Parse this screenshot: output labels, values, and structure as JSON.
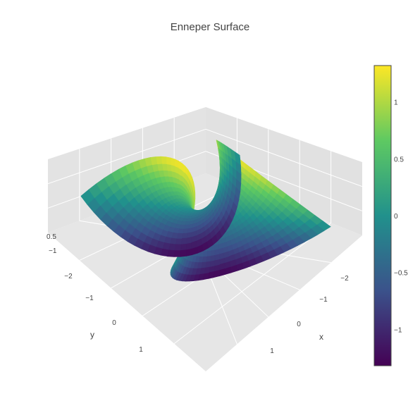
{
  "chart_data": {
    "type": "surface",
    "title": "Enneper Surface",
    "colorscale": "Viridis",
    "colorscale_colors": [
      "#440154",
      "#3b528b",
      "#21918c",
      "#5ec962",
      "#fde725"
    ],
    "colorbar": {
      "range": [
        -1.32,
        1.32
      ],
      "ticks": [
        {
          "value": 1,
          "label": "1"
        },
        {
          "value": 0.5,
          "label": "0.5"
        },
        {
          "value": 0,
          "label": "0"
        },
        {
          "value": -0.5,
          "label": "−0.5"
        },
        {
          "value": -1,
          "label": "−1"
        }
      ]
    },
    "scene": {
      "background": "#e5e5e5",
      "grid_color": "#ffffff",
      "x_axis": {
        "title": "x",
        "ticks": [
          "−2",
          "−1",
          "0",
          "1"
        ]
      },
      "y_axis": {
        "title": "y",
        "ticks": [
          "−2",
          "−1",
          "0",
          "1"
        ]
      },
      "z_axis": {
        "title": "",
        "ticks": [
          "0.5",
          "−1"
        ]
      }
    },
    "surface_formula": {
      "x": "u - u^3/3 + u*v^2",
      "y": "v - v^3/3 + v*u^2",
      "z": "u^2 - v^2"
    }
  }
}
